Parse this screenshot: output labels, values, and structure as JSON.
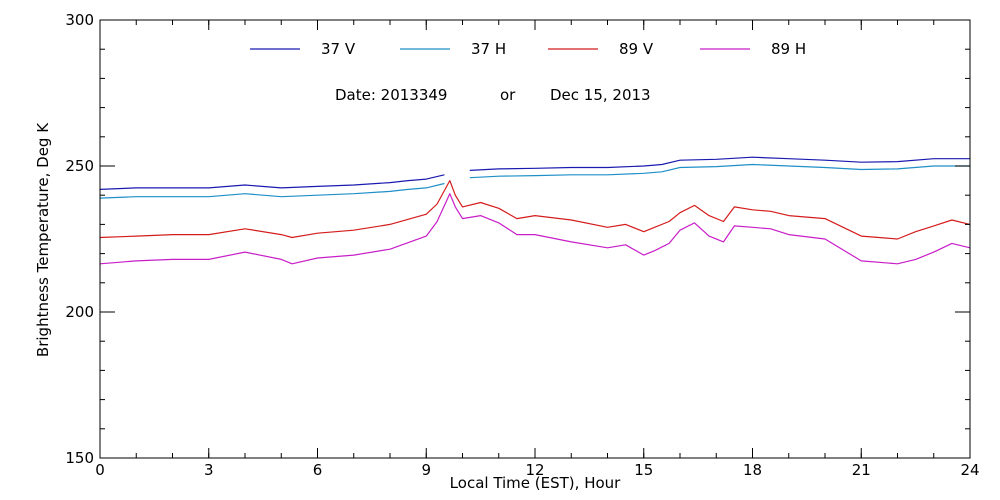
{
  "chart_data": {
    "type": "line",
    "title": "",
    "subtitle": {
      "date_prefix": "Date: 2013349",
      "connector": "or",
      "date_readable": "Dec 15, 2013"
    },
    "xlabel": "Local Time (EST), Hour",
    "ylabel": "Brightness Temperature, Deg K",
    "xlim": [
      0,
      24
    ],
    "ylim": [
      150,
      300
    ],
    "x_ticks": [
      0,
      3,
      6,
      9,
      12,
      15,
      18,
      21,
      24
    ],
    "y_ticks": [
      150,
      200,
      250,
      300
    ],
    "x_minor_step": 1,
    "y_minor_step": 10,
    "grid": false,
    "legend_position": "top",
    "series": [
      {
        "name": "37 V",
        "color": "#1a1ab0",
        "segments": [
          [
            [
              0,
              242
            ],
            [
              1,
              242.5
            ],
            [
              2,
              242.5
            ],
            [
              3,
              242.5
            ],
            [
              4,
              243.5
            ],
            [
              5,
              242.5
            ],
            [
              6,
              243
            ],
            [
              7,
              243.5
            ],
            [
              8,
              244.3
            ],
            [
              8.5,
              245
            ],
            [
              9,
              245.5
            ],
            [
              9.5,
              247
            ]
          ],
          [
            [
              10.2,
              248.5
            ],
            [
              11,
              249
            ],
            [
              12,
              249.2
            ],
            [
              13,
              249.5
            ],
            [
              14,
              249.5
            ],
            [
              15,
              250
            ],
            [
              15.5,
              250.5
            ],
            [
              16,
              252
            ],
            [
              17,
              252.3
            ],
            [
              18,
              253
            ],
            [
              19,
              252.5
            ],
            [
              20,
              252
            ],
            [
              21,
              251.3
            ],
            [
              22,
              251.5
            ],
            [
              23,
              252.5
            ],
            [
              24,
              252.5
            ]
          ]
        ]
      },
      {
        "name": "37 H",
        "color": "#1f8fc8",
        "segments": [
          [
            [
              0,
              239
            ],
            [
              1,
              239.5
            ],
            [
              2,
              239.5
            ],
            [
              3,
              239.5
            ],
            [
              4,
              240.5
            ],
            [
              5,
              239.5
            ],
            [
              6,
              240
            ],
            [
              7,
              240.5
            ],
            [
              8,
              241.3
            ],
            [
              8.5,
              242
            ],
            [
              9,
              242.5
            ],
            [
              9.5,
              244
            ]
          ],
          [
            [
              10.2,
              246
            ],
            [
              11,
              246.5
            ],
            [
              12,
              246.7
            ],
            [
              13,
              247
            ],
            [
              14,
              247
            ],
            [
              15,
              247.5
            ],
            [
              15.5,
              248
            ],
            [
              16,
              249.5
            ],
            [
              17,
              249.8
            ],
            [
              18,
              250.5
            ],
            [
              19,
              250
            ],
            [
              20,
              249.5
            ],
            [
              21,
              248.8
            ],
            [
              22,
              249
            ],
            [
              23,
              250
            ],
            [
              24,
              250
            ]
          ]
        ]
      },
      {
        "name": "89 V",
        "color": "#d41c1c",
        "segments": [
          [
            [
              0,
              225.5
            ],
            [
              1,
              226
            ],
            [
              2,
              226.5
            ],
            [
              3,
              226.5
            ],
            [
              4,
              228.5
            ],
            [
              5,
              226.5
            ],
            [
              5.3,
              225.5
            ],
            [
              6,
              227
            ],
            [
              7,
              228
            ],
            [
              8,
              230
            ],
            [
              9,
              233.5
            ],
            [
              9.3,
              237
            ],
            [
              9.65,
              245
            ],
            [
              9.8,
              240
            ],
            [
              10,
              236
            ],
            [
              10.5,
              237.5
            ],
            [
              11,
              235.5
            ],
            [
              11.5,
              232
            ],
            [
              12,
              233
            ],
            [
              13,
              231.5
            ],
            [
              14,
              229
            ],
            [
              14.5,
              230
            ],
            [
              15,
              227.5
            ],
            [
              15.3,
              229
            ],
            [
              15.7,
              231
            ],
            [
              16,
              234
            ],
            [
              16.4,
              236.5
            ],
            [
              16.8,
              233
            ],
            [
              17.2,
              231
            ],
            [
              17.5,
              236
            ],
            [
              18,
              235
            ],
            [
              18.5,
              234.5
            ],
            [
              19,
              233
            ],
            [
              20,
              232
            ],
            [
              21,
              226
            ],
            [
              22,
              225
            ],
            [
              22.5,
              227.5
            ],
            [
              23,
              229.5
            ],
            [
              23.5,
              231.5
            ],
            [
              24,
              230
            ]
          ]
        ]
      },
      {
        "name": "89 H",
        "color": "#c81ec8",
        "segments": [
          [
            [
              0,
              216.5
            ],
            [
              1,
              217.5
            ],
            [
              2,
              218
            ],
            [
              3,
              218
            ],
            [
              4,
              220.5
            ],
            [
              5,
              218
            ],
            [
              5.3,
              216.5
            ],
            [
              6,
              218.5
            ],
            [
              7,
              219.5
            ],
            [
              8,
              221.5
            ],
            [
              9,
              226
            ],
            [
              9.3,
              231
            ],
            [
              9.65,
              240.5
            ],
            [
              9.8,
              236
            ],
            [
              10,
              232
            ],
            [
              10.5,
              233
            ],
            [
              11,
              230.5
            ],
            [
              11.5,
              226.5
            ],
            [
              12,
              226.5
            ],
            [
              13,
              224
            ],
            [
              14,
              222
            ],
            [
              14.5,
              223
            ],
            [
              15,
              219.5
            ],
            [
              15.3,
              221
            ],
            [
              15.7,
              223.5
            ],
            [
              16,
              228
            ],
            [
              16.4,
              230.5
            ],
            [
              16.8,
              226
            ],
            [
              17.2,
              224
            ],
            [
              17.5,
              229.5
            ],
            [
              18,
              229
            ],
            [
              18.5,
              228.5
            ],
            [
              19,
              226.5
            ],
            [
              20,
              225
            ],
            [
              21,
              217.5
            ],
            [
              22,
              216.5
            ],
            [
              22.5,
              218
            ],
            [
              23,
              220.5
            ],
            [
              23.5,
              223.5
            ],
            [
              24,
              222
            ]
          ]
        ]
      }
    ]
  }
}
